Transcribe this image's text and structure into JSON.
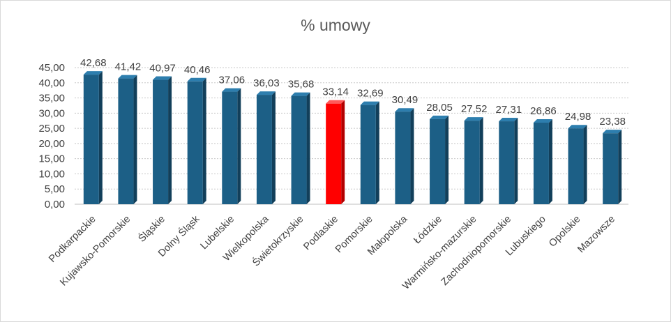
{
  "chart_data": {
    "type": "bar",
    "title": "% umowy",
    "xlabel": "",
    "ylabel": "",
    "ylim": [
      0,
      45
    ],
    "yticks": [
      "0,00",
      "5,00",
      "10,00",
      "15,00",
      "20,00",
      "25,00",
      "30,00",
      "35,00",
      "40,00",
      "45,00"
    ],
    "ytick_values": [
      0,
      5,
      10,
      15,
      20,
      25,
      30,
      35,
      40,
      45
    ],
    "grid": true,
    "legend": "none",
    "categories": [
      "Podkarpackie",
      "Kujawsko-Pomorskie",
      "Śląskie",
      "Dolny Śląsk",
      "Lubelskie",
      "Wielkopolska",
      "Świetokrzyskie",
      "Podlaskie",
      "Pomorskie",
      "Małopolska",
      "Łódzkie",
      "Warmińsko-mazurskie",
      "Zachodniopomorskie",
      "Lubuskiego",
      "Opolskie",
      "Mazowsze"
    ],
    "values": [
      42.68,
      41.42,
      40.97,
      40.46,
      37.06,
      36.03,
      35.68,
      33.14,
      32.69,
      30.49,
      28.05,
      27.52,
      27.31,
      26.86,
      24.98,
      23.38
    ],
    "value_labels": [
      "42,68",
      "41,42",
      "40,97",
      "40,46",
      "37,06",
      "36,03",
      "35,68",
      "33,14",
      "32,69",
      "30,49",
      "28,05",
      "27,52",
      "27,31",
      "26,86",
      "24,98",
      "23,38"
    ],
    "highlight_index": 7,
    "colors": {
      "bar": "#1c5f86",
      "bar_side": "#123f5a",
      "bar_top": "#2d7eae",
      "highlight": "#ff0000",
      "highlight_side": "#b30000",
      "highlight_top": "#ff5a5a"
    }
  }
}
